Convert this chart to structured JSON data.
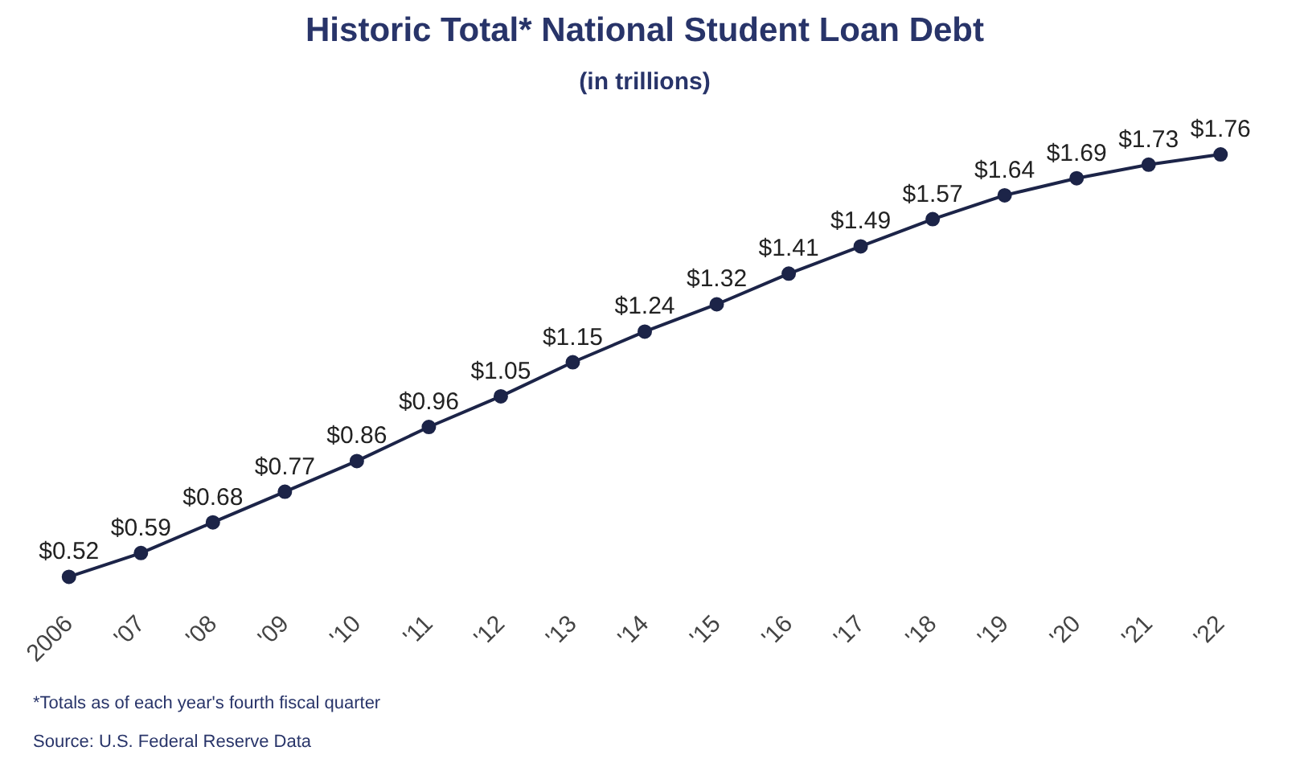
{
  "chart_data": {
    "type": "line",
    "title": "Historic Total* National Student Loan Debt",
    "subtitle": "(in trillions)",
    "categories": [
      "2006",
      "'07",
      "'08",
      "'09",
      "'10",
      "'11",
      "'12",
      "'13",
      "'14",
      "'15",
      "'16",
      "'17",
      "'18",
      "'19",
      "'20",
      "'21",
      "'22"
    ],
    "series": [
      {
        "color": "#1c2448",
        "values": [
          0.52,
          0.59,
          0.68,
          0.77,
          0.86,
          0.96,
          1.05,
          1.15,
          1.24,
          1.32,
          1.41,
          1.49,
          1.57,
          1.64,
          1.69,
          1.73,
          1.76
        ],
        "value_labels": [
          "$0.52",
          "$0.59",
          "$0.68",
          "$0.77",
          "$0.86",
          "$0.96",
          "$1.05",
          "$1.15",
          "$1.24",
          "$1.32",
          "$1.41",
          "$1.49",
          "$1.57",
          "$1.64",
          "$1.69",
          "$1.73",
          "$1.76"
        ]
      }
    ],
    "marker": "circle",
    "line_style": "solid",
    "grid": false,
    "tick_labels": "x",
    "annotations": [
      "*Totals as of each year's fourth fiscal quarter",
      "Source: U.S. Federal Reserve Data"
    ]
  }
}
